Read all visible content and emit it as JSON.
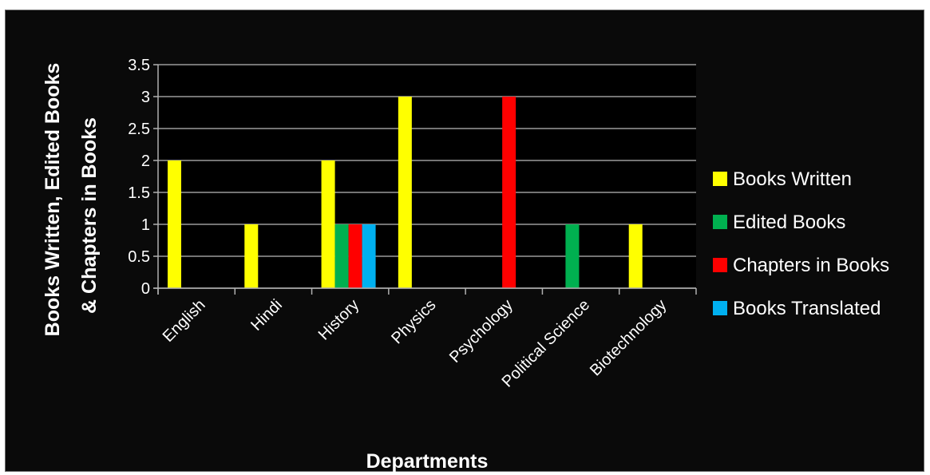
{
  "chart_data": {
    "type": "bar",
    "title": "",
    "xlabel": "Departments",
    "ylabel": [
      "Books Written, Edited Books",
      "& Chapters in Books"
    ],
    "categories": [
      "English",
      "Hindi",
      "History",
      "Physics",
      "Psychology",
      "Political Science",
      "Biotechnology"
    ],
    "series": [
      {
        "name": "Books Written",
        "color": "#ffff00",
        "values": [
          2,
          1,
          2,
          3,
          0,
          0,
          1
        ]
      },
      {
        "name": "Edited Books",
        "color": "#00b050",
        "values": [
          0,
          0,
          1,
          0,
          0,
          1,
          0
        ]
      },
      {
        "name": "Chapters in Books",
        "color": "#ff0000",
        "values": [
          0,
          0,
          1,
          0,
          3,
          0,
          0
        ]
      },
      {
        "name": "Books Translated",
        "color": "#00b0f0",
        "values": [
          0,
          0,
          1,
          0,
          0,
          0,
          0
        ]
      }
    ],
    "ylim": [
      0,
      3.5
    ],
    "yticks": [
      0,
      0.5,
      1,
      1.5,
      2,
      2.5,
      3,
      3.5
    ],
    "ytick_labels": [
      "0",
      "0.5",
      "1",
      "1.5",
      "2",
      "2.5",
      "3",
      "3.5"
    ],
    "grid": true,
    "legend_position": "right",
    "colors": {
      "background": "#000000",
      "gridline": "#9a9a9a",
      "text": "#ffffff"
    }
  }
}
